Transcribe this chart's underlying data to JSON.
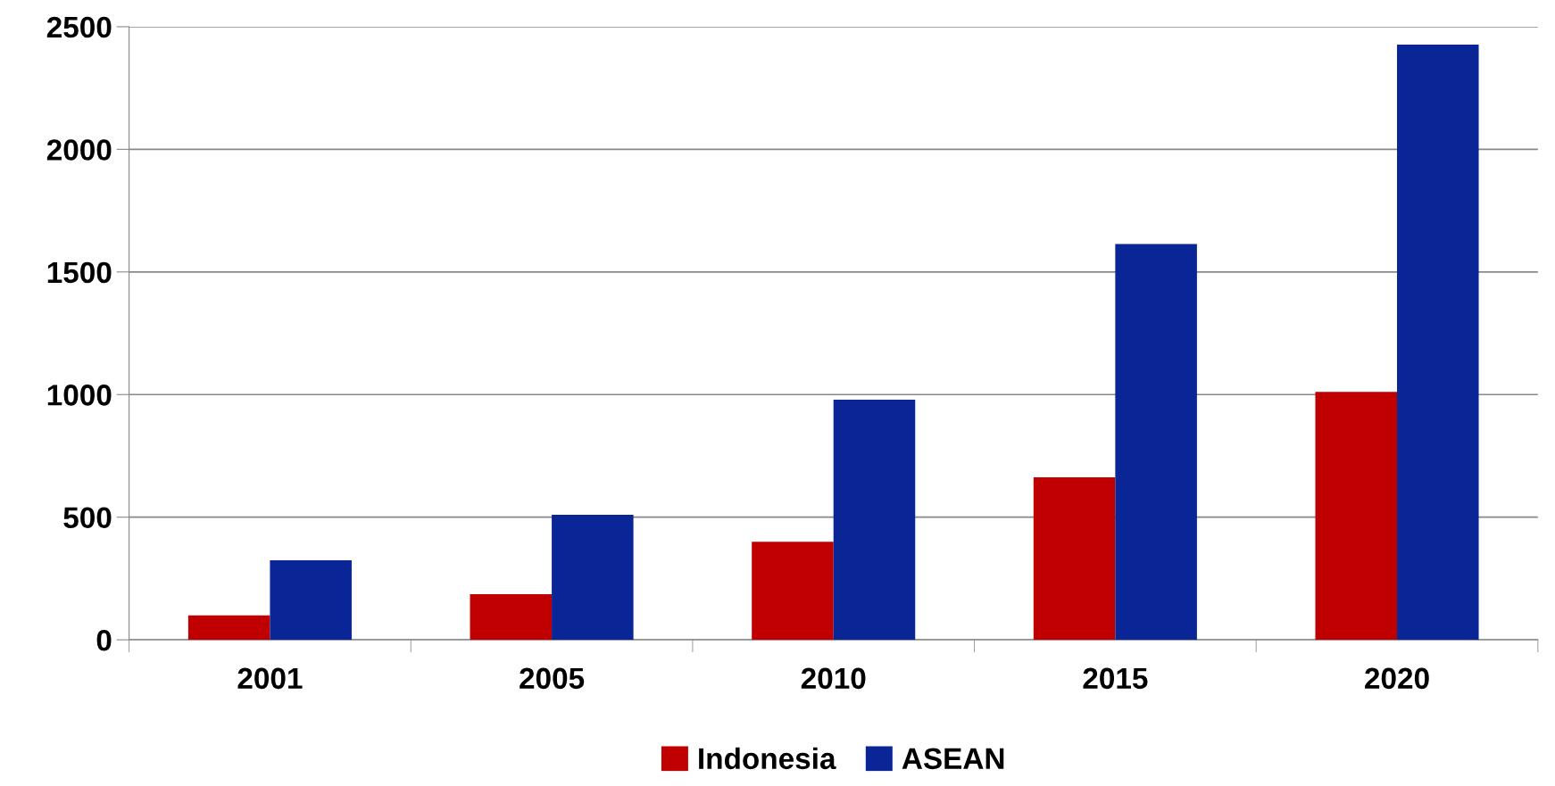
{
  "chart_data": {
    "type": "bar",
    "categories": [
      "2001",
      "2005",
      "2010",
      "2015",
      "2020"
    ],
    "series": [
      {
        "name": "Indonesia",
        "color": "#c00000",
        "values": [
          100,
          186,
          400,
          663,
          1011
        ]
      },
      {
        "name": "ASEAN",
        "color": "#0a2596",
        "values": [
          324,
          510,
          979,
          1614,
          2427
        ]
      }
    ],
    "ylim": [
      0,
      2500
    ],
    "yticks": [
      0,
      500,
      1000,
      1500,
      2000,
      2500
    ],
    "grid": "y",
    "legend": "bottom"
  }
}
